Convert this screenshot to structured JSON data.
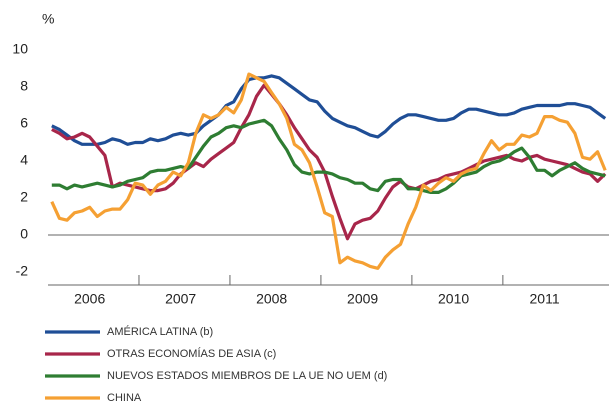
{
  "chart_data": {
    "type": "line",
    "ylabel": "%",
    "categories": [
      null,
      null,
      null,
      null,
      null,
      "2006",
      null,
      null,
      null,
      null,
      null,
      null,
      null,
      null,
      null,
      null,
      null,
      "2007",
      null,
      null,
      null,
      null,
      null,
      null,
      null,
      null,
      null,
      null,
      null,
      "2008",
      null,
      null,
      null,
      null,
      null,
      null,
      null,
      null,
      null,
      null,
      null,
      "2009",
      null,
      null,
      null,
      null,
      null,
      null,
      null,
      null,
      null,
      null,
      null,
      "2010",
      null,
      null,
      null,
      null,
      null,
      null,
      null,
      null,
      null,
      null,
      null,
      "2011",
      null,
      null,
      null,
      null,
      null,
      null,
      null,
      null
    ],
    "ylim": [
      -2,
      10
    ],
    "yticks": [
      -2,
      0,
      2,
      4,
      6,
      8,
      10
    ],
    "zero_line": true,
    "legend": "bottom-left",
    "series": [
      {
        "name": "AMÉRICA LATINA (b)",
        "color": "#1f4e96",
        "values": [
          5.9,
          5.7,
          5.4,
          5.1,
          4.9,
          4.9,
          4.9,
          5.0,
          5.2,
          5.1,
          4.9,
          5.0,
          5.0,
          5.2,
          5.1,
          5.2,
          5.4,
          5.5,
          5.4,
          5.5,
          5.9,
          6.2,
          6.5,
          7.0,
          7.2,
          7.9,
          8.4,
          8.5,
          8.5,
          8.6,
          8.5,
          8.2,
          7.9,
          7.6,
          7.3,
          7.2,
          6.7,
          6.3,
          6.1,
          5.9,
          5.8,
          5.6,
          5.4,
          5.3,
          5.6,
          6.0,
          6.3,
          6.5,
          6.5,
          6.4,
          6.3,
          6.2,
          6.2,
          6.3,
          6.6,
          6.8,
          6.8,
          6.7,
          6.6,
          6.5,
          6.5,
          6.6,
          6.8,
          6.9,
          7.0,
          7.0,
          7.0,
          7.0,
          7.1,
          7.1,
          7.0,
          6.9,
          6.6,
          6.3
        ]
      },
      {
        "name": "OTRAS ECONOMÍAS DE ASIA (c)",
        "color": "#a8264a",
        "values": [
          5.7,
          5.5,
          5.2,
          5.3,
          5.5,
          5.3,
          4.8,
          4.3,
          2.6,
          2.8,
          2.7,
          2.6,
          2.5,
          2.4,
          2.4,
          2.5,
          2.8,
          3.3,
          3.6,
          3.9,
          3.7,
          4.1,
          4.4,
          4.7,
          5.0,
          5.8,
          6.5,
          7.5,
          8.1,
          7.6,
          7.1,
          6.5,
          5.8,
          5.2,
          4.6,
          4.2,
          3.4,
          2.1,
          0.9,
          -0.2,
          0.6,
          0.8,
          0.9,
          1.3,
          2.0,
          2.6,
          2.9,
          2.6,
          2.5,
          2.7,
          2.9,
          3.0,
          3.2,
          3.3,
          3.4,
          3.6,
          3.8,
          4.0,
          4.1,
          4.2,
          4.3,
          4.1,
          4.0,
          4.2,
          4.3,
          4.1,
          4.0,
          3.9,
          3.8,
          3.6,
          3.4,
          3.3,
          2.9,
          3.3
        ]
      },
      {
        "name": "NUEVOS ESTADOS MIEMBROS DE LA UE NO UEM (d)",
        "color": "#2e7d32",
        "values": [
          2.7,
          2.7,
          2.5,
          2.7,
          2.6,
          2.7,
          2.8,
          2.7,
          2.6,
          2.7,
          2.9,
          3.0,
          3.1,
          3.4,
          3.5,
          3.5,
          3.6,
          3.7,
          3.6,
          4.2,
          4.8,
          5.3,
          5.5,
          5.8,
          5.9,
          5.8,
          6.0,
          6.1,
          6.2,
          5.9,
          5.2,
          4.6,
          3.8,
          3.4,
          3.3,
          3.4,
          3.4,
          3.3,
          3.1,
          3.0,
          2.8,
          2.8,
          2.5,
          2.4,
          2.9,
          3.0,
          3.0,
          2.5,
          2.5,
          2.4,
          2.3,
          2.3,
          2.5,
          2.8,
          3.2,
          3.3,
          3.4,
          3.7,
          3.9,
          4.0,
          4.2,
          4.5,
          4.7,
          4.2,
          3.5,
          3.5,
          3.2,
          3.5,
          3.7,
          3.9,
          3.6,
          3.4,
          3.3,
          3.2
        ]
      },
      {
        "name": "CHINA",
        "color": "#f5a033",
        "values": [
          1.8,
          0.9,
          0.8,
          1.2,
          1.3,
          1.5,
          1.0,
          1.3,
          1.4,
          1.4,
          1.9,
          2.8,
          2.7,
          2.2,
          2.7,
          2.9,
          3.4,
          3.2,
          3.9,
          5.5,
          6.5,
          6.3,
          6.5,
          6.9,
          6.6,
          7.3,
          8.7,
          8.5,
          8.3,
          7.7,
          7.1,
          6.3,
          4.9,
          4.6,
          3.9,
          2.6,
          1.2,
          1.0,
          -1.5,
          -1.2,
          -1.4,
          -1.5,
          -1.7,
          -1.8,
          -1.2,
          -0.8,
          -0.5,
          0.6,
          1.5,
          2.7,
          2.4,
          2.8,
          3.1,
          2.9,
          3.3,
          3.5,
          3.6,
          4.4,
          5.1,
          4.6,
          4.9,
          4.9,
          5.4,
          5.3,
          5.5,
          6.4,
          6.4,
          6.2,
          6.1,
          5.5,
          4.2,
          4.1,
          4.5,
          3.5
        ]
      }
    ]
  }
}
